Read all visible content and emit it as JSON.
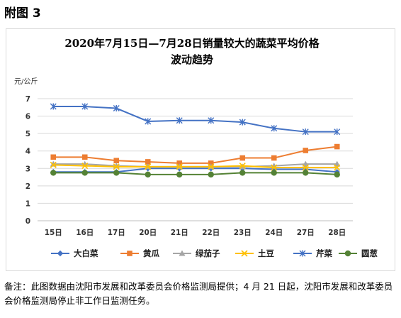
{
  "figure_label": "附图 3",
  "footnote": "备注：此图数据由沈阳市发展和改革委员会价格监测局提供；4 月 21 日起，沈阳市发展和改革委员会价格监测局停止非工作日监测任务。",
  "chart_data": {
    "type": "line",
    "title_line1": "2020年7月15日—7月28日销量较大的蔬菜平均价格",
    "title_line2": "波动趋势",
    "ylabel": "元/公斤",
    "xlabel": "",
    "categories": [
      "15日",
      "16日",
      "17日",
      "20日",
      "21日",
      "22日",
      "23日",
      "24日",
      "27日",
      "28日"
    ],
    "ylim": [
      0,
      7
    ],
    "yticks": [
      0,
      1,
      2,
      3,
      4,
      5,
      6,
      7
    ],
    "grid": true,
    "legend_position": "bottom",
    "series": [
      {
        "name": "大白菜",
        "color": "#4472C4",
        "marker": "diamond",
        "values": [
          2.8,
          2.8,
          2.8,
          3.0,
          3.0,
          3.0,
          3.0,
          2.95,
          2.95,
          2.8
        ]
      },
      {
        "name": "黄瓜",
        "color": "#ED7D31",
        "marker": "square",
        "values": [
          3.65,
          3.65,
          3.45,
          3.38,
          3.3,
          3.3,
          3.6,
          3.6,
          4.03,
          4.25
        ]
      },
      {
        "name": "绿茄子",
        "color": "#A5A5A5",
        "marker": "triangle",
        "values": [
          3.25,
          3.25,
          3.15,
          3.1,
          3.1,
          3.1,
          3.1,
          3.15,
          3.25,
          3.25
        ]
      },
      {
        "name": "土豆",
        "color": "#FFC000",
        "marker": "x",
        "values": [
          3.2,
          3.15,
          3.1,
          3.1,
          3.1,
          3.1,
          3.15,
          3.05,
          3.05,
          3.05
        ]
      },
      {
        "name": "芹菜",
        "color": "#4472C4",
        "marker": "star",
        "values": [
          6.55,
          6.55,
          6.45,
          5.7,
          5.75,
          5.75,
          5.65,
          5.3,
          5.1,
          5.1
        ]
      },
      {
        "name": "圆葱",
        "color": "#548235",
        "marker": "circle",
        "values": [
          2.75,
          2.75,
          2.75,
          2.65,
          2.65,
          2.65,
          2.75,
          2.75,
          2.75,
          2.65
        ]
      }
    ]
  }
}
